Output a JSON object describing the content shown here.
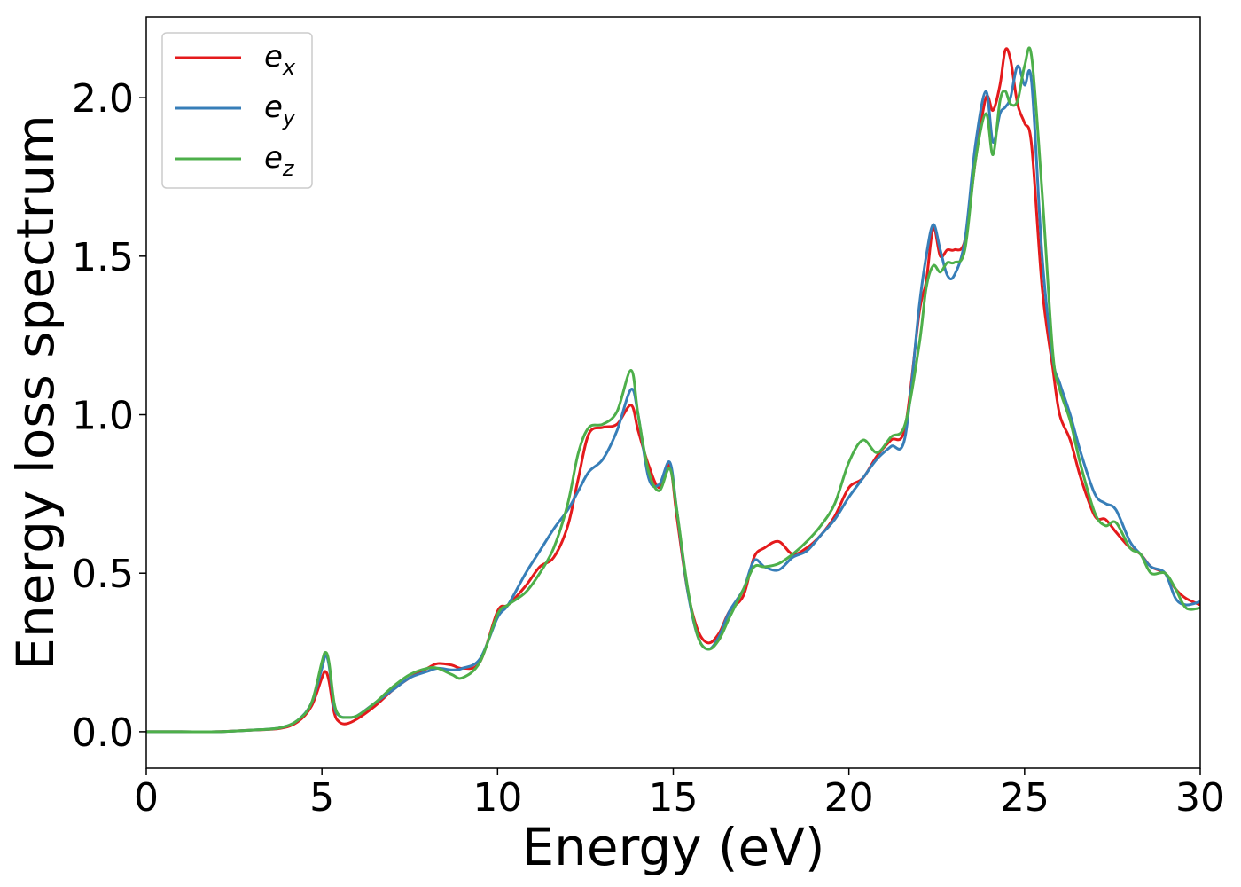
{
  "chart_data": {
    "type": "line",
    "title": "",
    "xlabel": "Energy (eV)",
    "ylabel": "Energy loss spectrum",
    "xlim": [
      0,
      30
    ],
    "ylim": [
      -0.115,
      2.255
    ],
    "xticks": [
      0,
      5,
      10,
      15,
      20,
      25,
      30
    ],
    "xtick_labels": [
      "0",
      "5",
      "10",
      "15",
      "20",
      "25",
      "30"
    ],
    "yticks": [
      0.0,
      0.5,
      1.0,
      1.5,
      2.0
    ],
    "ytick_labels": [
      "0.0",
      "0.5",
      "1.0",
      "1.5",
      "2.0"
    ],
    "grid": false,
    "legend_position": "top-left",
    "series": [
      {
        "name": "e_x",
        "legend_base": "e",
        "legend_sub": "x",
        "color": "#e41a1c",
        "x": [
          0,
          1,
          2,
          3,
          3.8,
          4.3,
          4.7,
          5.0,
          5.1,
          5.2,
          5.35,
          5.5,
          5.7,
          6.0,
          6.5,
          7.0,
          7.5,
          8.0,
          8.3,
          8.7,
          9.0,
          9.5,
          10.0,
          10.3,
          10.8,
          11.2,
          11.6,
          12.0,
          12.3,
          12.6,
          13.0,
          13.4,
          13.8,
          14.0,
          14.3,
          14.6,
          14.9,
          15.1,
          15.4,
          15.7,
          16.0,
          16.3,
          16.6,
          17.0,
          17.3,
          17.6,
          18.0,
          18.4,
          18.8,
          19.2,
          19.6,
          20.0,
          20.4,
          20.8,
          21.2,
          21.6,
          22.0,
          22.2,
          22.4,
          22.6,
          22.8,
          23.0,
          23.3,
          23.6,
          23.9,
          24.1,
          24.3,
          24.45,
          24.6,
          24.8,
          25.0,
          25.2,
          25.5,
          25.8,
          26.0,
          26.3,
          26.6,
          27.0,
          27.3,
          27.6,
          28.0,
          28.3,
          28.6,
          29.0,
          29.3,
          29.6,
          30.0
        ],
        "y": [
          0.0,
          0.0,
          0.0,
          0.005,
          0.01,
          0.03,
          0.08,
          0.17,
          0.19,
          0.16,
          0.06,
          0.03,
          0.025,
          0.04,
          0.08,
          0.13,
          0.17,
          0.2,
          0.215,
          0.21,
          0.2,
          0.22,
          0.38,
          0.4,
          0.46,
          0.52,
          0.55,
          0.65,
          0.8,
          0.94,
          0.96,
          0.97,
          1.03,
          0.95,
          0.84,
          0.77,
          0.84,
          0.68,
          0.45,
          0.32,
          0.28,
          0.31,
          0.38,
          0.43,
          0.55,
          0.58,
          0.6,
          0.56,
          0.58,
          0.62,
          0.68,
          0.77,
          0.8,
          0.87,
          0.92,
          0.96,
          1.32,
          1.42,
          1.59,
          1.5,
          1.52,
          1.52,
          1.55,
          1.8,
          2.0,
          1.96,
          2.04,
          2.15,
          2.12,
          1.98,
          1.92,
          1.85,
          1.4,
          1.15,
          1.0,
          0.92,
          0.8,
          0.68,
          0.67,
          0.63,
          0.58,
          0.56,
          0.52,
          0.5,
          0.45,
          0.42,
          0.4
        ]
      },
      {
        "name": "e_y",
        "legend_base": "e",
        "legend_sub": "y",
        "color": "#377eb8",
        "x": [
          0,
          1,
          2,
          3,
          3.8,
          4.3,
          4.7,
          5.0,
          5.1,
          5.2,
          5.35,
          5.5,
          5.7,
          6.0,
          6.5,
          7.0,
          7.5,
          8.0,
          8.3,
          8.7,
          9.0,
          9.5,
          10.0,
          10.3,
          10.8,
          11.2,
          11.6,
          12.0,
          12.3,
          12.6,
          13.0,
          13.4,
          13.8,
          14.0,
          14.3,
          14.6,
          14.9,
          15.1,
          15.4,
          15.7,
          16.0,
          16.3,
          16.6,
          17.0,
          17.3,
          17.6,
          18.0,
          18.4,
          18.8,
          19.2,
          19.6,
          20.0,
          20.4,
          20.8,
          21.2,
          21.6,
          22.0,
          22.2,
          22.4,
          22.6,
          22.8,
          23.0,
          23.3,
          23.6,
          23.9,
          24.1,
          24.3,
          24.45,
          24.6,
          24.8,
          25.0,
          25.2,
          25.5,
          25.8,
          26.0,
          26.3,
          26.6,
          27.0,
          27.3,
          27.6,
          28.0,
          28.3,
          28.6,
          29.0,
          29.3,
          29.6,
          30.0
        ],
        "y": [
          0.0,
          0.0,
          0.0,
          0.005,
          0.012,
          0.035,
          0.09,
          0.2,
          0.24,
          0.21,
          0.08,
          0.05,
          0.045,
          0.05,
          0.09,
          0.13,
          0.17,
          0.19,
          0.2,
          0.195,
          0.2,
          0.23,
          0.36,
          0.4,
          0.5,
          0.57,
          0.64,
          0.7,
          0.76,
          0.82,
          0.86,
          0.95,
          1.08,
          1.0,
          0.8,
          0.78,
          0.85,
          0.7,
          0.45,
          0.3,
          0.26,
          0.3,
          0.38,
          0.45,
          0.54,
          0.52,
          0.51,
          0.55,
          0.57,
          0.62,
          0.67,
          0.74,
          0.8,
          0.86,
          0.9,
          0.93,
          1.34,
          1.5,
          1.6,
          1.52,
          1.44,
          1.44,
          1.55,
          1.85,
          2.02,
          1.86,
          1.95,
          1.97,
          2.0,
          2.1,
          2.04,
          2.05,
          1.5,
          1.18,
          1.1,
          1.0,
          0.88,
          0.75,
          0.72,
          0.7,
          0.6,
          0.56,
          0.52,
          0.5,
          0.42,
          0.4,
          0.41
        ]
      },
      {
        "name": "e_z",
        "legend_base": "e",
        "legend_sub": "z",
        "color": "#4daf4a",
        "x": [
          0,
          1,
          2,
          3,
          3.8,
          4.3,
          4.7,
          5.0,
          5.1,
          5.2,
          5.35,
          5.5,
          5.7,
          6.0,
          6.5,
          7.0,
          7.5,
          8.0,
          8.3,
          8.7,
          9.0,
          9.5,
          10.0,
          10.3,
          10.8,
          11.2,
          11.6,
          12.0,
          12.3,
          12.6,
          13.0,
          13.4,
          13.8,
          14.0,
          14.3,
          14.6,
          14.9,
          15.1,
          15.4,
          15.7,
          16.0,
          16.3,
          16.6,
          17.0,
          17.3,
          17.6,
          18.0,
          18.4,
          18.8,
          19.2,
          19.6,
          20.0,
          20.4,
          20.8,
          21.2,
          21.6,
          22.0,
          22.2,
          22.4,
          22.6,
          22.8,
          23.0,
          23.3,
          23.6,
          23.9,
          24.1,
          24.3,
          24.45,
          24.6,
          24.8,
          25.0,
          25.2,
          25.5,
          25.8,
          26.0,
          26.3,
          26.6,
          27.0,
          27.3,
          27.6,
          28.0,
          28.3,
          28.6,
          29.0,
          29.3,
          29.6,
          30.0
        ],
        "y": [
          0.0,
          0.0,
          0.0,
          0.005,
          0.012,
          0.035,
          0.09,
          0.22,
          0.25,
          0.22,
          0.09,
          0.05,
          0.045,
          0.05,
          0.09,
          0.14,
          0.18,
          0.2,
          0.2,
          0.18,
          0.17,
          0.22,
          0.37,
          0.4,
          0.44,
          0.5,
          0.58,
          0.72,
          0.88,
          0.96,
          0.97,
          1.01,
          1.14,
          1.0,
          0.82,
          0.76,
          0.83,
          0.7,
          0.46,
          0.3,
          0.26,
          0.29,
          0.36,
          0.45,
          0.52,
          0.52,
          0.53,
          0.56,
          0.6,
          0.65,
          0.72,
          0.85,
          0.92,
          0.88,
          0.93,
          0.97,
          1.22,
          1.4,
          1.47,
          1.45,
          1.48,
          1.48,
          1.52,
          1.8,
          1.95,
          1.82,
          1.99,
          2.02,
          1.98,
          1.99,
          2.1,
          2.13,
          1.7,
          1.2,
          1.08,
          0.98,
          0.84,
          0.69,
          0.65,
          0.66,
          0.58,
          0.56,
          0.5,
          0.5,
          0.45,
          0.39,
          0.39
        ]
      }
    ]
  }
}
